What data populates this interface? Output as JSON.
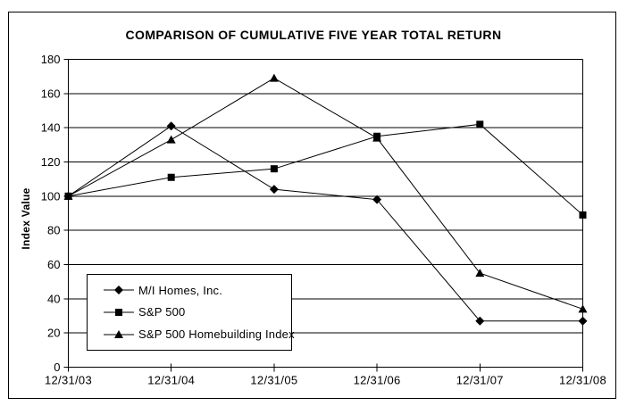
{
  "window": {
    "background_color": "#ffffff",
    "frame_border_color": "#000000",
    "line_color": "#000000"
  },
  "chart_data": {
    "type": "line",
    "title": "COMPARISON OF CUMULATIVE FIVE YEAR TOTAL RETURN",
    "xlabel": "",
    "ylabel": "Index Value",
    "x": [
      "12/31/03",
      "12/31/04",
      "12/31/05",
      "12/31/06",
      "12/31/07",
      "12/31/08"
    ],
    "ylim": [
      0,
      180
    ],
    "yticks": [
      0,
      20,
      40,
      60,
      80,
      100,
      120,
      140,
      160,
      180
    ],
    "grid": true,
    "legend_position": "inside-bottom-left",
    "series": [
      {
        "name": "M/I Homes, Inc.",
        "marker": "diamond-marker",
        "color": "#000000",
        "values": [
          100,
          141,
          104,
          98,
          27,
          27
        ]
      },
      {
        "name": "S&P 500",
        "marker": "square-marker",
        "color": "#000000",
        "values": [
          100,
          111,
          116,
          135,
          142,
          89
        ]
      },
      {
        "name": "S&P 500 Homebuilding Index",
        "marker": "triangle-marker",
        "color": "#000000",
        "values": [
          100,
          133,
          169,
          134,
          55,
          34
        ]
      }
    ]
  }
}
